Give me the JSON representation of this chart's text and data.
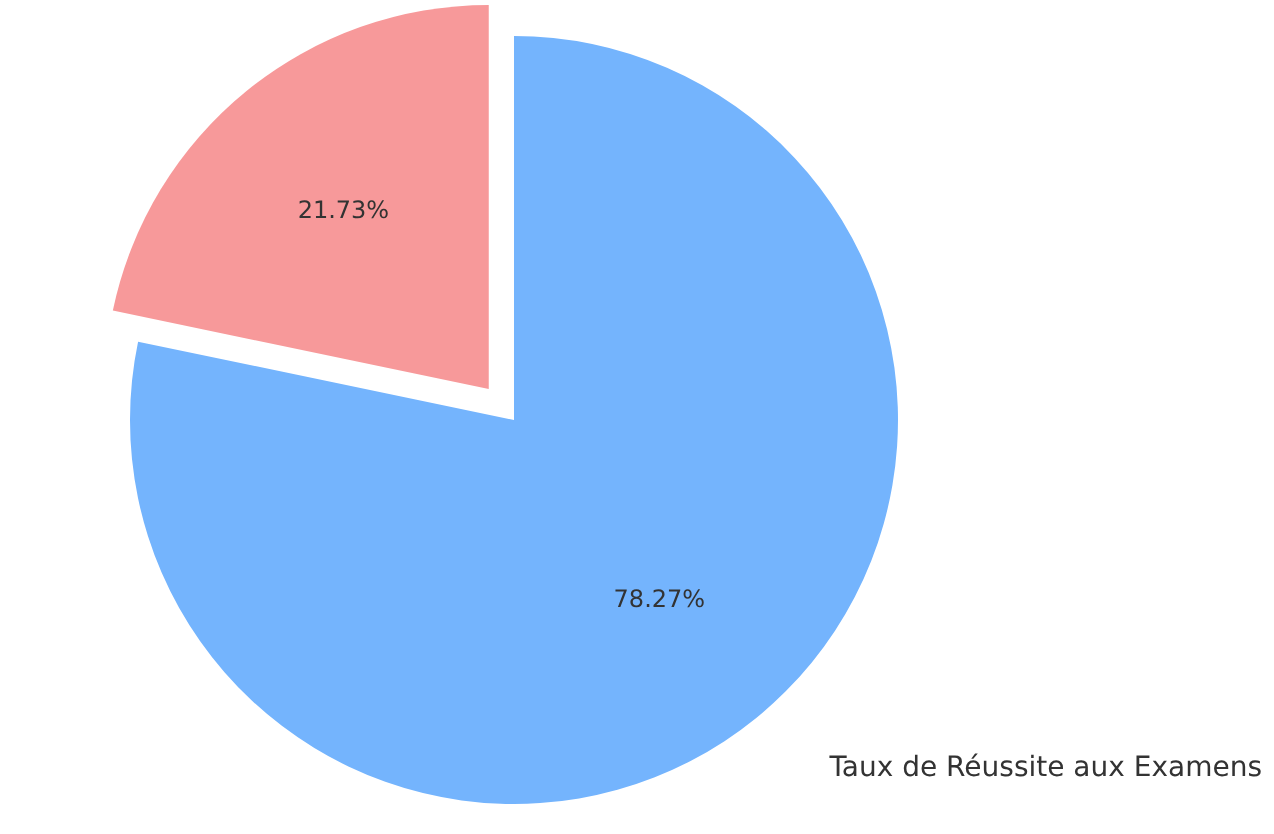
{
  "chart_data": {
    "type": "pie",
    "title": "Taux de Réussite aux Examens",
    "categories": [
      null,
      null
    ],
    "values": [
      78.27,
      21.73
    ],
    "value_labels": [
      "78.27%",
      "21.73%"
    ],
    "colors": [
      "#74b4fd",
      "#f7999a"
    ]
  }
}
